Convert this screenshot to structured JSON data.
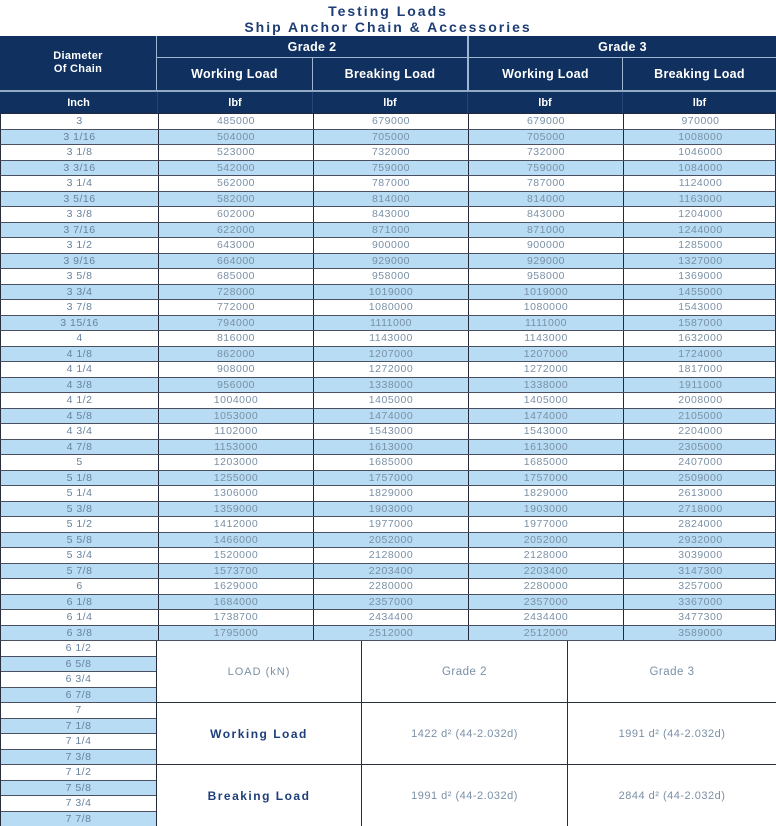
{
  "title": {
    "line1": "Testing Loads",
    "line2": "Ship Anchor Chain & Accessories"
  },
  "header": {
    "diameter_line1": "Diameter",
    "diameter_line2": "Of Chain",
    "grade2": "Grade 2",
    "grade3": "Grade 3",
    "working_load": "Working Load",
    "breaking_load": "Breaking Load",
    "unit_inch": "Inch",
    "unit_lbf": "lbf"
  },
  "table": {
    "columns": [
      "Diameter Of Chain (Inch)",
      "Grade 2 Working Load (lbf)",
      "Grade 2 Breaking Load (lbf)",
      "Grade 3 Working Load (lbf)",
      "Grade 3 Breaking Load (lbf)"
    ],
    "rows": [
      [
        "3",
        "485000",
        "679000",
        "679000",
        "970000"
      ],
      [
        "3 1/16",
        "504000",
        "705000",
        "705000",
        "1008000"
      ],
      [
        "3 1/8",
        "523000",
        "732000",
        "732000",
        "1046000"
      ],
      [
        "3 3/16",
        "542000",
        "759000",
        "759000",
        "1084000"
      ],
      [
        "3 1/4",
        "562000",
        "787000",
        "787000",
        "1124000"
      ],
      [
        "3 5/16",
        "582000",
        "814000",
        "814000",
        "1163000"
      ],
      [
        "3 3/8",
        "602000",
        "843000",
        "843000",
        "1204000"
      ],
      [
        "3 7/16",
        "622000",
        "871000",
        "871000",
        "1244000"
      ],
      [
        "3 1/2",
        "643000",
        "900000",
        "900000",
        "1285000"
      ],
      [
        "3 9/16",
        "664000",
        "929000",
        "929000",
        "1327000"
      ],
      [
        "3 5/8",
        "685000",
        "958000",
        "958000",
        "1369000"
      ],
      [
        "3 3/4",
        "728000",
        "1019000",
        "1019000",
        "1455000"
      ],
      [
        "3 7/8",
        "772000",
        "1080000",
        "1080000",
        "1543000"
      ],
      [
        "3 15/16",
        "794000",
        "1111000",
        "1111000",
        "1587000"
      ],
      [
        "4",
        "816000",
        "1143000",
        "1143000",
        "1632000"
      ],
      [
        "4 1/8",
        "862000",
        "1207000",
        "1207000",
        "1724000"
      ],
      [
        "4 1/4",
        "908000",
        "1272000",
        "1272000",
        "1817000"
      ],
      [
        "4 3/8",
        "956000",
        "1338000",
        "1338000",
        "1911000"
      ],
      [
        "4 1/2",
        "1004000",
        "1405000",
        "1405000",
        "2008000"
      ],
      [
        "4 5/8",
        "1053000",
        "1474000",
        "1474000",
        "2105000"
      ],
      [
        "4 3/4",
        "1102000",
        "1543000",
        "1543000",
        "2204000"
      ],
      [
        "4 7/8",
        "1153000",
        "1613000",
        "1613000",
        "2305000"
      ],
      [
        "5",
        "1203000",
        "1685000",
        "1685000",
        "2407000"
      ],
      [
        "5 1/8",
        "1255000",
        "1757000",
        "1757000",
        "2509000"
      ],
      [
        "5 1/4",
        "1306000",
        "1829000",
        "1829000",
        "2613000"
      ],
      [
        "5 3/8",
        "1359000",
        "1903000",
        "1903000",
        "2718000"
      ],
      [
        "5 1/2",
        "1412000",
        "1977000",
        "1977000",
        "2824000"
      ],
      [
        "5 5/8",
        "1466000",
        "2052000",
        "2052000",
        "2932000"
      ],
      [
        "5 3/4",
        "1520000",
        "2128000",
        "2128000",
        "3039000"
      ],
      [
        "5 7/8",
        "1573700",
        "2203400",
        "2203400",
        "3147300"
      ],
      [
        "6",
        "1629000",
        "2280000",
        "2280000",
        "3257000"
      ],
      [
        "6 1/8",
        "1684000",
        "2357000",
        "2357000",
        "3367000"
      ],
      [
        "6 1/4",
        "1738700",
        "2434400",
        "2434400",
        "3477300"
      ],
      [
        "6 3/8",
        "1795000",
        "2512000",
        "2512000",
        "3589000"
      ]
    ]
  },
  "extra_diameters": [
    "6 1/2",
    "6 5/8",
    "6 3/4",
    "6 7/8",
    "7",
    "7 1/8",
    "7 1/4",
    "7 3/8",
    "7 1/2",
    "7 5/8",
    "7 3/4",
    "7 7/8"
  ],
  "formula_box": {
    "load_label": "LOAD (kN)",
    "grade2": "Grade 2",
    "grade3": "Grade 3",
    "rows": [
      {
        "label": "Working Load",
        "grade2": "1422 d² (44-2.032d)",
        "grade3": "1991 d² (44-2.032d)"
      },
      {
        "label": "Breaking Load",
        "grade2": "1991 d² (44-2.032d)",
        "grade3": "2844 d² (44-2.032d)"
      }
    ]
  },
  "colors": {
    "header_navy": "#10305f",
    "title_navy": "#1d3d75",
    "stripe_blue": "#b7dcf4",
    "value_text": "#7a90a6",
    "header_line": "#9fb6d0"
  }
}
